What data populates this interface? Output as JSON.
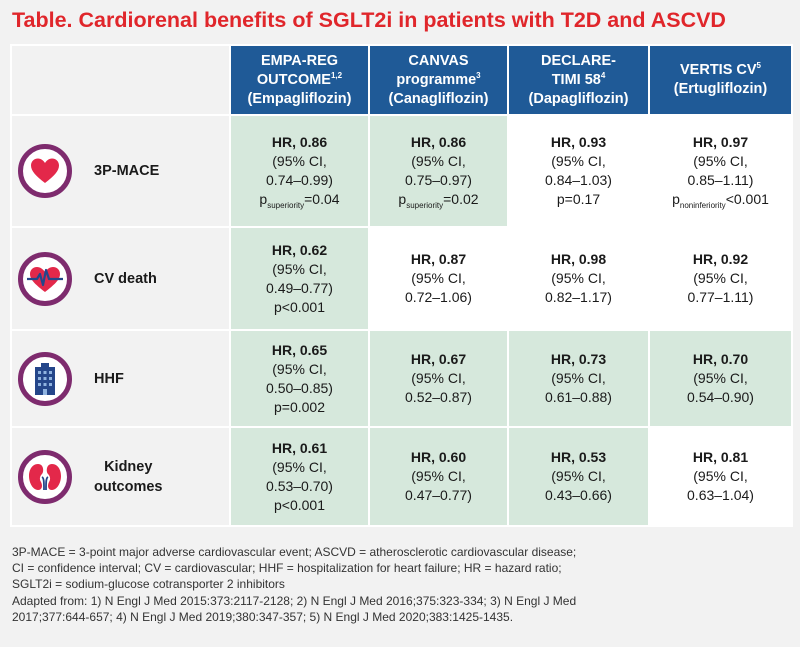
{
  "title": "Table. Cardiorenal benefits of SGLT2i in patients with T2D and ASCVD",
  "colors": {
    "title": "#e0262b",
    "header_bg": "#1f5a97",
    "highlight": "#d6e8dc",
    "icon_ring": "#7e2b6e",
    "icon_fill": "#e3284a",
    "building": "#24468a"
  },
  "columns": [
    {
      "line1": "EMPA-REG",
      "line2": "OUTCOME",
      "sup": "1,2",
      "line3": "(Empagliflozin)"
    },
    {
      "line1": "CANVAS",
      "line2": "programme",
      "sup": "3",
      "line3": "(Canagliflozin)"
    },
    {
      "line1": "DECLARE-",
      "line2": "TIMI 58",
      "sup": "4",
      "line3": "(Dapagliflozin)"
    },
    {
      "line1": "VERTIS CV",
      "line2": "",
      "sup": "5",
      "line3": "(Ertugliflozin)"
    }
  ],
  "rows": [
    {
      "label_line1": "3P-MACE",
      "label_line2": "",
      "icon": "heart-icon",
      "cells": [
        {
          "hr": "HR, 0.86",
          "ci1": "(95% CI,",
          "ci2": "0.74–0.99)",
          "p_pre": "p",
          "p_sub": "superiority",
          "p_post": "=0.04",
          "shaded": true
        },
        {
          "hr": "HR, 0.86",
          "ci1": "(95% CI,",
          "ci2": "0.75–0.97)",
          "p_pre": "p",
          "p_sub": "superiority",
          "p_post": "=0.02",
          "shaded": true
        },
        {
          "hr": "HR, 0.93",
          "ci1": "(95% CI,",
          "ci2": "0.84–1.03)",
          "p_pre": "p=0.17",
          "p_sub": "",
          "p_post": "",
          "shaded": false
        },
        {
          "hr": "HR, 0.97",
          "ci1": "(95% CI,",
          "ci2": "0.85–1.11)",
          "p_pre": "p",
          "p_sub": "noninferiority",
          "p_post": "<0.001",
          "shaded": false
        }
      ]
    },
    {
      "label_line1": "CV death",
      "label_line2": "",
      "icon": "heartbeat-icon",
      "cells": [
        {
          "hr": "HR, 0.62",
          "ci1": "(95% CI,",
          "ci2": "0.49–0.77)",
          "p_pre": "p<0.001",
          "p_sub": "",
          "p_post": "",
          "shaded": true
        },
        {
          "hr": "HR, 0.87",
          "ci1": "(95% CI,",
          "ci2": "0.72–1.06)",
          "p_pre": "",
          "p_sub": "",
          "p_post": "",
          "shaded": false
        },
        {
          "hr": "HR, 0.98",
          "ci1": "(95% CI,",
          "ci2": "0.82–1.17)",
          "p_pre": "",
          "p_sub": "",
          "p_post": "",
          "shaded": false
        },
        {
          "hr": "HR, 0.92",
          "ci1": "(95% CI,",
          "ci2": "0.77–1.11)",
          "p_pre": "",
          "p_sub": "",
          "p_post": "",
          "shaded": false
        }
      ]
    },
    {
      "label_line1": "HHF",
      "label_line2": "",
      "icon": "hospital-icon",
      "cells": [
        {
          "hr": "HR, 0.65",
          "ci1": "(95% CI,",
          "ci2": "0.50–0.85)",
          "p_pre": "p=0.002",
          "p_sub": "",
          "p_post": "",
          "shaded": true
        },
        {
          "hr": "HR, 0.67",
          "ci1": "(95% CI,",
          "ci2": "0.52–0.87)",
          "p_pre": "",
          "p_sub": "",
          "p_post": "",
          "shaded": true
        },
        {
          "hr": "HR, 0.73",
          "ci1": "(95% CI,",
          "ci2": "0.61–0.88)",
          "p_pre": "",
          "p_sub": "",
          "p_post": "",
          "shaded": true
        },
        {
          "hr": "HR, 0.70",
          "ci1": "(95% CI,",
          "ci2": "0.54–0.90)",
          "p_pre": "",
          "p_sub": "",
          "p_post": "",
          "shaded": true
        }
      ]
    },
    {
      "label_line1": "Kidney",
      "label_line2": "outcomes",
      "icon": "kidney-icon",
      "cells": [
        {
          "hr": "HR, 0.61",
          "ci1": "(95% CI,",
          "ci2": "0.53–0.70)",
          "p_pre": "p<0.001",
          "p_sub": "",
          "p_post": "",
          "shaded": true
        },
        {
          "hr": "HR, 0.60",
          "ci1": "(95% CI,",
          "ci2": "0.47–0.77)",
          "p_pre": "",
          "p_sub": "",
          "p_post": "",
          "shaded": true
        },
        {
          "hr": "HR, 0.53",
          "ci1": "(95% CI,",
          "ci2": "0.43–0.66)",
          "p_pre": "",
          "p_sub": "",
          "p_post": "",
          "shaded": true
        },
        {
          "hr": "HR, 0.81",
          "ci1": "(95% CI,",
          "ci2": "0.63–1.04)",
          "p_pre": "",
          "p_sub": "",
          "p_post": "",
          "shaded": false
        }
      ]
    }
  ],
  "footnote": {
    "lines": [
      "3P-MACE = 3-point major adverse cardiovascular event; ASCVD = atherosclerotic cardiovascular disease;",
      "CI = confidence interval; CV = cardiovascular; HHF = hospitalization for heart failure; HR = hazard ratio;",
      "SGLT2i = sodium-glucose cotransporter 2 inhibitors",
      "Adapted from: 1) N Engl J Med 2015:373:2117-2128; 2) N Engl J Med 2016;375:323-334; 3) N Engl J Med",
      "2017;377:644-657; 4) N Engl J Med 2019;380:347-357; 5) N Engl J Med 2020;383:1425-1435."
    ]
  }
}
